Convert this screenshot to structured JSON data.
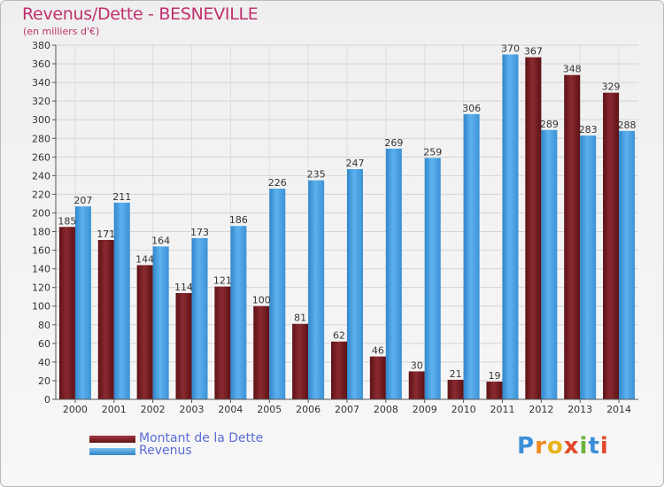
{
  "header": {
    "title": "Revenus/Dette - BESNEVILLE",
    "subtitle": "(en milliers d'€)"
  },
  "logo": {
    "text": "Proxiti",
    "letters": [
      "P",
      "r",
      "o",
      "x",
      "i",
      "t",
      "i"
    ],
    "colors": [
      "#3a8fd8",
      "#f08a1c",
      "#e8b21c",
      "#e24a2a",
      "#6db33f",
      "#3a8fd8",
      "#e24a2a"
    ]
  },
  "colors": {
    "dette": "#7a1e22",
    "revenus": "#4ea5e6",
    "title": "#c0306e",
    "legend_text": "#5b6bd6"
  },
  "legend": [
    {
      "name": "Montant de la Dette",
      "color": "#7a1e22"
    },
    {
      "name": "Revenus",
      "color": "#4ea5e6"
    }
  ],
  "chart_data": {
    "type": "bar",
    "title": "Revenus/Dette - BESNEVILLE",
    "subtitle": "(en milliers d'€)",
    "categories": [
      "2000",
      "2001",
      "2002",
      "2003",
      "2004",
      "2005",
      "2006",
      "2007",
      "2008",
      "2009",
      "2010",
      "2011",
      "2012",
      "2013",
      "2014"
    ],
    "series": [
      {
        "name": "Montant de la Dette",
        "values": [
          185,
          171,
          144,
          114,
          121,
          100,
          81,
          62,
          46,
          30,
          21,
          19,
          367,
          348,
          329
        ]
      },
      {
        "name": "Revenus",
        "values": [
          207,
          211,
          164,
          173,
          186,
          226,
          235,
          247,
          269,
          259,
          306,
          370,
          289,
          283,
          288
        ]
      }
    ],
    "ylim": [
      0,
      380
    ],
    "ytick_step": 20,
    "grid": true,
    "legend_position": "bottom-left"
  }
}
